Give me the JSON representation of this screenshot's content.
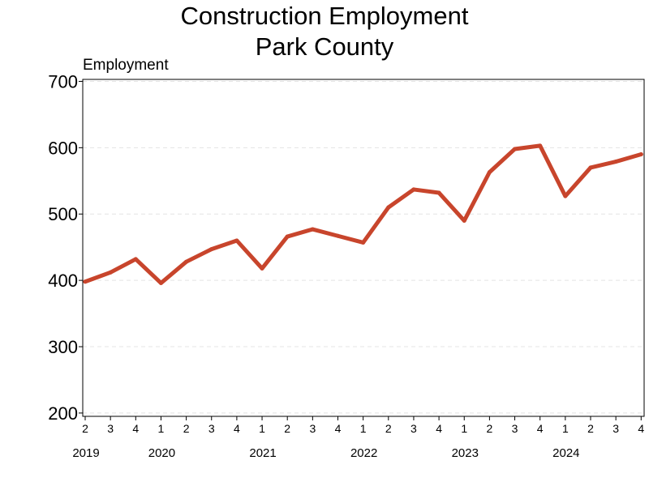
{
  "chart_data": {
    "type": "line",
    "title": [
      "Construction Employment",
      "Park County"
    ],
    "ylabel": "Employment",
    "xlabel": "",
    "ylim": [
      195,
      703
    ],
    "yticks": [
      200,
      300,
      400,
      500,
      600,
      700
    ],
    "grid": "horizontal dashed",
    "x": [
      "2019 Q2",
      "2019 Q3",
      "2019 Q4",
      "2020 Q1",
      "2020 Q2",
      "2020 Q3",
      "2020 Q4",
      "2021 Q1",
      "2021 Q2",
      "2021 Q3",
      "2021 Q4",
      "2022 Q1",
      "2022 Q2",
      "2022 Q3",
      "2022 Q4",
      "2023 Q1",
      "2023 Q2",
      "2023 Q3",
      "2023 Q4",
      "2024 Q1",
      "2024 Q2",
      "2024 Q3",
      "2024 Q4"
    ],
    "quarter_labels": [
      "2",
      "3",
      "4",
      "1",
      "2",
      "3",
      "4",
      "1",
      "2",
      "3",
      "4",
      "1",
      "2",
      "3",
      "4",
      "1",
      "2",
      "3",
      "4",
      "1",
      "2",
      "3",
      "4"
    ],
    "years": [
      {
        "label": "2019",
        "at_index": 0
      },
      {
        "label": "2020",
        "at_index": 3
      },
      {
        "label": "2021",
        "at_index": 7
      },
      {
        "label": "2022",
        "at_index": 11
      },
      {
        "label": "2023",
        "at_index": 15
      },
      {
        "label": "2024",
        "at_index": 19
      }
    ],
    "series": [
      {
        "values": [
          398,
          412,
          432,
          396,
          428,
          447,
          460,
          418,
          466,
          477,
          467,
          457,
          510,
          537,
          532,
          490,
          563,
          598,
          603,
          527,
          570,
          579,
          590
        ],
        "color": "#c8452c"
      }
    ]
  }
}
